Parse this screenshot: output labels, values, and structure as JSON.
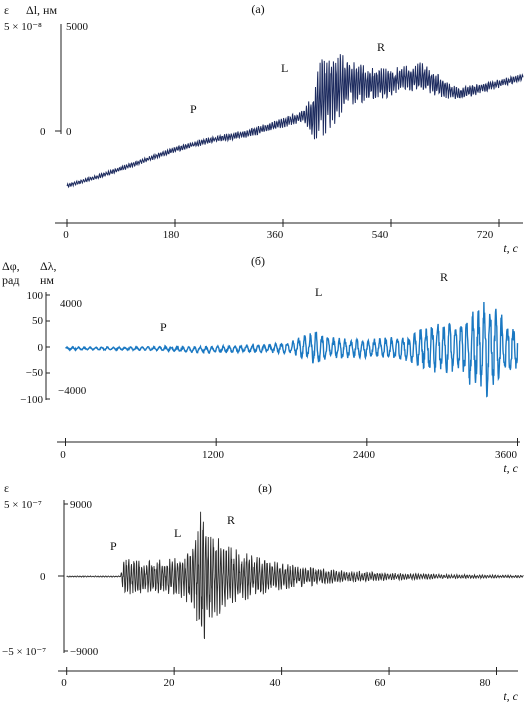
{
  "chart_data": [
    {
      "panel": "(а)",
      "type": "line",
      "color": "#1c2a5e",
      "x_label": "t, с",
      "x_ticks": [
        "0",
        "180",
        "360",
        "540",
        "720"
      ],
      "xlim": [
        -10,
        760
      ],
      "left_axis": {
        "label": "ε",
        "ticks": [
          "5 × 10⁻⁸"
        ]
      },
      "right_axis": {
        "label": "Δl, нм",
        "ticks": [
          "5000",
          "0"
        ]
      },
      "ylim": [
        -2800,
        5000
      ],
      "phase_labels": [
        {
          "text": "P",
          "x": 215,
          "y": 1350
        },
        {
          "text": "L",
          "x": 375,
          "y": 3750
        },
        {
          "text": "R",
          "x": 545,
          "y": 4800
        }
      ],
      "envelope": {
        "x": [
          0,
          60,
          120,
          180,
          240,
          300,
          360,
          395,
          410,
          425,
          440,
          455,
          470,
          500,
          530,
          560,
          590,
          620,
          650,
          680,
          720,
          760
        ],
        "trend": [
          -2600,
          -2100,
          -1500,
          -900,
          -450,
          -150,
          350,
          700,
          600,
          1700,
          1900,
          2100,
          2300,
          2150,
          2200,
          2450,
          2500,
          2100,
          1700,
          1900,
          2200,
          2500
        ],
        "amplitude": [
          80,
          100,
          110,
          120,
          150,
          180,
          220,
          300,
          1100,
          2000,
          1800,
          1500,
          1100,
          850,
          700,
          550,
          700,
          500,
          300,
          250,
          200,
          150
        ]
      },
      "notes": "x in seconds, y in nm (Δl)"
    },
    {
      "panel": "(б)",
      "type": "line",
      "color": "#1a78c2",
      "x_label": "t, с",
      "x_ticks": [
        "0",
        "1200",
        "2400",
        "3600"
      ],
      "xlim": [
        -20,
        3620
      ],
      "left_axis": {
        "label": "Δφ, рад",
        "ticks": [
          "100",
          "50",
          "0",
          "−50",
          "−100"
        ]
      },
      "right_axis": {
        "label": "Δλ, нм",
        "ticks": [
          "4000",
          "−4000"
        ]
      },
      "ylim": [
        -105,
        115
      ],
      "phase_labels": [
        {
          "text": "P",
          "x": 800,
          "y": 18
        },
        {
          "text": "L",
          "x": 2050,
          "y": 58
        },
        {
          "text": "R",
          "x": 3000,
          "y": 73
        }
      ],
      "envelope": {
        "x": [
          0,
          400,
          800,
          1000,
          1200,
          1600,
          1800,
          1850,
          1950,
          2000,
          2100,
          2300,
          2500,
          2700,
          2900,
          3100,
          3250,
          3350,
          3400,
          3500,
          3600
        ],
        "trend": [
          0,
          0,
          0,
          -2,
          -2,
          0,
          2,
          3,
          2,
          0,
          1,
          0,
          0,
          0,
          0,
          0,
          0,
          0,
          0,
          0,
          2
        ],
        "amplitude": [
          3,
          3,
          4,
          6,
          7,
          8,
          12,
          18,
          28,
          33,
          22,
          18,
          20,
          25,
          45,
          55,
          75,
          95,
          85,
          60,
          45
        ]
      },
      "notes": "x in seconds, y in rad (Δφ)"
    },
    {
      "panel": "(в)",
      "type": "line",
      "color": "#2a2a2a",
      "x_label": "t, с",
      "x_ticks": [
        "0",
        "20",
        "40",
        "60",
        "80"
      ],
      "xlim": [
        -0.5,
        84
      ],
      "left_axis": {
        "label": "ε",
        "ticks": [
          "5 × 10⁻⁷",
          "0",
          "−5 × 10⁻⁷"
        ]
      },
      "right_axis": {
        "label": "",
        "ticks": [
          "9000",
          "−9000"
        ]
      },
      "ylim": [
        -10500,
        10500
      ],
      "phase_labels": [
        {
          "text": "P",
          "x": 10,
          "y": 4000
        },
        {
          "text": "L",
          "x": 22,
          "y": 6000
        },
        {
          "text": "R",
          "x": 32,
          "y": 4500
        }
      ],
      "envelope": {
        "x": [
          0,
          10,
          10.5,
          12,
          15,
          20,
          22,
          24,
          25,
          26,
          28,
          30,
          35,
          40,
          50,
          60,
          70,
          80,
          85
        ],
        "trend": [
          0,
          0,
          0,
          0,
          0,
          0,
          0,
          0,
          0,
          0,
          0,
          0,
          0,
          0,
          0,
          0,
          0,
          0,
          0
        ],
        "amplitude": [
          80,
          80,
          2200,
          2500,
          2200,
          2500,
          3200,
          5500,
          10000,
          8000,
          5500,
          4200,
          2800,
          1800,
          900,
          500,
          300,
          200,
          150
        ]
      },
      "notes": "x in seconds, y in nm (right axis scale)"
    }
  ]
}
